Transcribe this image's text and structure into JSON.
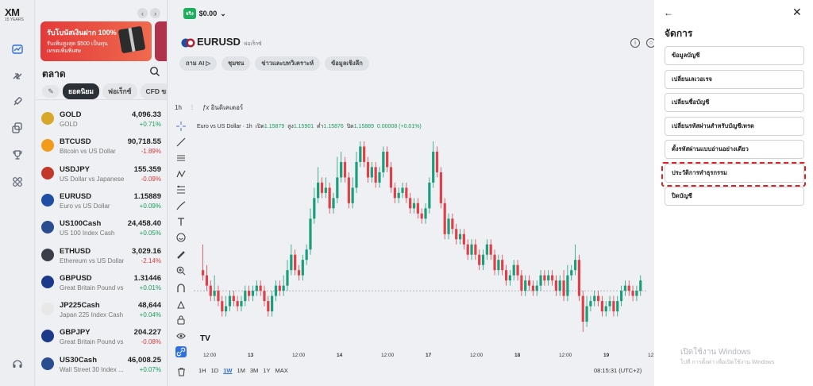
{
  "logo": {
    "brand": "XM",
    "years": "15 YEARS"
  },
  "rail": {
    "icons": [
      "chart-icon",
      "transfer-icon",
      "rocket-icon",
      "copy-icon",
      "trophy-icon",
      "apps-icon",
      "support-icon"
    ]
  },
  "market": {
    "banner_title": "รับโบนัสเงินฝาก 100%",
    "banner_sub": "รับเพิ่มสูงสุด $500 เป็นทุนเทรดเพิ่มพิเศษ",
    "title": "ตลาด",
    "tabs": [
      "ยอดนิยม",
      "ฟอเร็กซ์",
      "CFD ขอ"
    ],
    "assets": [
      {
        "symbol": "GOLD",
        "desc": "GOLD",
        "price": "4,096.33",
        "change": "+0.71%",
        "dir": "up",
        "flag": "#d8a628"
      },
      {
        "symbol": "BTCUSD",
        "desc": "Bitcoin vs US Dollar",
        "price": "90,718.55",
        "change": "-1.89%",
        "dir": "down",
        "flag": "#f29a1b"
      },
      {
        "symbol": "USDJPY",
        "desc": "US Dollar vs Japanese ...",
        "price": "155.359",
        "change": "-0.09%",
        "dir": "down",
        "flag": "#c0392b"
      },
      {
        "symbol": "EURUSD",
        "desc": "Euro vs US Dollar",
        "price": "1.15889",
        "change": "+0.09%",
        "dir": "up",
        "flag": "#1f4ea3"
      },
      {
        "symbol": "US100Cash",
        "desc": "US 100 Index Cash",
        "price": "24,458.40",
        "change": "+0.05%",
        "dir": "up",
        "flag": "#2a4d8f"
      },
      {
        "symbol": "ETHUSD",
        "desc": "Ethereum vs US Dollar",
        "price": "3,029.16",
        "change": "-2.14%",
        "dir": "down",
        "flag": "#3b3f4a"
      },
      {
        "symbol": "GBPUSD",
        "desc": "Great Britain Pound vs ...",
        "price": "1.31446",
        "change": "+0.01%",
        "dir": "up",
        "flag": "#1b3a8a"
      },
      {
        "symbol": "JP225Cash",
        "desc": "Japan 225 Index Cash",
        "price": "48,644",
        "change": "+0.04%",
        "dir": "up",
        "flag": "#e8e8e8"
      },
      {
        "symbol": "GBPJPY",
        "desc": "Great Britain Pound vs ...",
        "price": "204.227",
        "change": "-0.08%",
        "dir": "down",
        "flag": "#1b3a8a"
      },
      {
        "symbol": "US30Cash",
        "desc": "Wall Street 30 Index ...",
        "price": "46,008.25",
        "change": "+0.07%",
        "dir": "up",
        "flag": "#2a4d8f"
      }
    ]
  },
  "main": {
    "account_badge": "จริง",
    "balance": "$0.00",
    "pair": "EURUSD",
    "pair_type": "ฟอเร็กซ์",
    "chips": [
      "ถาม AI ▷",
      "ชุมชน",
      "ข่าวและบทวิเคราะห์",
      "ข้อมูลเชิงลึก"
    ],
    "interval": "1h",
    "indicators_label": "อินดิเคเตอร์",
    "ohlc": {
      "title": "Euro vs US Dollar · 1h",
      "open_label": "เปิด",
      "open": "1.15879",
      "high_label": "สูง",
      "high": "1.15901",
      "low_label": "ต่ำ",
      "low": "1.15876",
      "close_label": "ปิด",
      "close": "1.15889",
      "change": "0.00008 (+0.01%)"
    },
    "timeframes": [
      "1H",
      "1D",
      "1W",
      "1M",
      "3M",
      "1Y",
      "MAX"
    ],
    "selected_timeframe": "1W",
    "clock": "08:15:31 (UTC+2)",
    "tv_logo": "TV",
    "x_labels": [
      {
        "t": "12:00",
        "b": false
      },
      {
        "t": "13",
        "b": true
      },
      {
        "t": "12:00",
        "b": false
      },
      {
        "t": "14",
        "b": true
      },
      {
        "t": "12:00",
        "b": false
      },
      {
        "t": "17",
        "b": true
      },
      {
        "t": "12:00",
        "b": false
      },
      {
        "t": "18",
        "b": true
      },
      {
        "t": "12:00",
        "b": false
      },
      {
        "t": "19",
        "b": true
      },
      {
        "t": "12:00",
        "b": false
      }
    ]
  },
  "manage": {
    "title": "จัดการ",
    "items": [
      "ข้อมูลบัญชี",
      "เปลี่ยนเลเวอเรจ",
      "เปลี่ยนชื่อบัญชี",
      "เปลี่ยนรหัสผ่านสำหรับบัญชีเทรด",
      "ตั้งรหัสผ่านแบบอ่านอย่างเดียว",
      "ประวัติการทำธุรกรรม",
      "ปิดบัญชี"
    ],
    "highlighted_item": "ประวัติการทำธุรกรรม",
    "watermark_title": "เปิดใช้งาน Windows",
    "watermark_sub": "ไปที่ การตั้งค่า เพื่อเปิดใช้งาน Windows"
  },
  "colors": {
    "bull": "#1a9e7c",
    "bear": "#e0404a",
    "accent": "#2f6fe0",
    "highlight": "#e02020"
  },
  "chart_data": {
    "type": "candlestick",
    "symbol": "EURUSD",
    "interval": "1h",
    "candles": [
      [
        50,
        52,
        40,
        54,
        "d"
      ],
      [
        52,
        56,
        48,
        58,
        "d"
      ],
      [
        56,
        60,
        54,
        62,
        "d"
      ],
      [
        60,
        58,
        52,
        62,
        "u"
      ],
      [
        58,
        62,
        56,
        64,
        "d"
      ],
      [
        62,
        66,
        60,
        68,
        "d"
      ],
      [
        66,
        64,
        60,
        68,
        "u"
      ],
      [
        64,
        60,
        58,
        66,
        "u"
      ],
      [
        60,
        62,
        58,
        64,
        "d"
      ],
      [
        62,
        64,
        60,
        66,
        "d"
      ],
      [
        64,
        62,
        60,
        66,
        "u"
      ],
      [
        62,
        58,
        56,
        64,
        "u"
      ],
      [
        58,
        60,
        56,
        62,
        "d"
      ],
      [
        60,
        58,
        56,
        62,
        "u"
      ],
      [
        58,
        56,
        54,
        60,
        "u"
      ],
      [
        56,
        58,
        54,
        60,
        "d"
      ],
      [
        58,
        62,
        56,
        64,
        "d"
      ],
      [
        62,
        66,
        60,
        68,
        "d"
      ],
      [
        66,
        60,
        58,
        68,
        "u"
      ],
      [
        60,
        56,
        54,
        62,
        "u"
      ],
      [
        56,
        58,
        54,
        60,
        "d"
      ],
      [
        58,
        56,
        52,
        60,
        "u"
      ],
      [
        56,
        50,
        46,
        58,
        "u"
      ],
      [
        50,
        44,
        40,
        52,
        "u"
      ],
      [
        44,
        50,
        42,
        52,
        "d"
      ],
      [
        50,
        52,
        48,
        54,
        "d"
      ],
      [
        52,
        46,
        44,
        54,
        "u"
      ],
      [
        46,
        42,
        40,
        48,
        "u"
      ],
      [
        42,
        30,
        26,
        44,
        "u"
      ],
      [
        30,
        22,
        18,
        32,
        "u"
      ],
      [
        22,
        16,
        10,
        24,
        "u"
      ],
      [
        16,
        20,
        14,
        22,
        "d"
      ],
      [
        20,
        18,
        14,
        22,
        "u"
      ],
      [
        18,
        26,
        16,
        28,
        "d"
      ],
      [
        26,
        22,
        20,
        28,
        "u"
      ],
      [
        22,
        14,
        6,
        24,
        "u"
      ],
      [
        14,
        8,
        4,
        16,
        "u"
      ],
      [
        8,
        14,
        6,
        16,
        "d"
      ],
      [
        14,
        24,
        12,
        26,
        "d"
      ],
      [
        24,
        18,
        14,
        26,
        "u"
      ],
      [
        18,
        8,
        4,
        20,
        "u"
      ],
      [
        8,
        2,
        0,
        10,
        "u"
      ],
      [
        2,
        8,
        0,
        10,
        "d"
      ],
      [
        8,
        14,
        6,
        16,
        "d"
      ],
      [
        14,
        10,
        8,
        16,
        "u"
      ],
      [
        10,
        16,
        8,
        18,
        "d"
      ],
      [
        16,
        12,
        10,
        18,
        "u"
      ],
      [
        12,
        4,
        2,
        14,
        "u"
      ],
      [
        4,
        10,
        2,
        12,
        "d"
      ],
      [
        10,
        18,
        8,
        20,
        "d"
      ],
      [
        18,
        22,
        16,
        24,
        "d"
      ],
      [
        22,
        20,
        18,
        24,
        "u"
      ],
      [
        20,
        18,
        16,
        22,
        "u"
      ],
      [
        18,
        22,
        16,
        24,
        "d"
      ],
      [
        22,
        26,
        20,
        28,
        "d"
      ],
      [
        26,
        24,
        22,
        28,
        "u"
      ],
      [
        24,
        28,
        22,
        30,
        "d"
      ],
      [
        28,
        30,
        26,
        32,
        "d"
      ],
      [
        30,
        26,
        24,
        32,
        "u"
      ],
      [
        26,
        16,
        14,
        28,
        "u"
      ],
      [
        16,
        4,
        0,
        18,
        "u"
      ],
      [
        4,
        12,
        2,
        14,
        "d"
      ],
      [
        12,
        24,
        10,
        26,
        "d"
      ],
      [
        24,
        36,
        22,
        38,
        "d"
      ],
      [
        36,
        30,
        28,
        38,
        "u"
      ],
      [
        30,
        34,
        28,
        36,
        "d"
      ],
      [
        34,
        38,
        32,
        40,
        "d"
      ],
      [
        38,
        36,
        34,
        40,
        "u"
      ],
      [
        36,
        40,
        34,
        42,
        "d"
      ],
      [
        40,
        44,
        38,
        46,
        "d"
      ],
      [
        44,
        40,
        38,
        46,
        "u"
      ],
      [
        40,
        44,
        38,
        46,
        "d"
      ],
      [
        44,
        48,
        42,
        50,
        "d"
      ],
      [
        48,
        44,
        42,
        50,
        "u"
      ],
      [
        44,
        40,
        38,
        46,
        "u"
      ],
      [
        40,
        44,
        38,
        46,
        "d"
      ],
      [
        44,
        50,
        42,
        52,
        "d"
      ],
      [
        50,
        46,
        44,
        52,
        "u"
      ],
      [
        46,
        50,
        44,
        52,
        "d"
      ],
      [
        50,
        54,
        48,
        56,
        "d"
      ],
      [
        54,
        52,
        50,
        56,
        "u"
      ],
      [
        52,
        48,
        46,
        54,
        "u"
      ],
      [
        48,
        52,
        46,
        54,
        "d"
      ],
      [
        52,
        58,
        50,
        60,
        "d"
      ],
      [
        58,
        54,
        52,
        60,
        "u"
      ],
      [
        54,
        56,
        52,
        58,
        "d"
      ],
      [
        56,
        58,
        54,
        60,
        "d"
      ],
      [
        58,
        56,
        54,
        60,
        "u"
      ],
      [
        56,
        52,
        50,
        58,
        "u"
      ],
      [
        52,
        54,
        50,
        56,
        "d"
      ],
      [
        54,
        52,
        50,
        56,
        "u"
      ],
      [
        52,
        54,
        50,
        56,
        "d"
      ],
      [
        54,
        58,
        52,
        60,
        "d"
      ],
      [
        58,
        54,
        52,
        60,
        "u"
      ],
      [
        54,
        60,
        50,
        62,
        "d"
      ],
      [
        60,
        52,
        48,
        62,
        "u"
      ],
      [
        52,
        50,
        48,
        54,
        "u"
      ],
      [
        50,
        46,
        40,
        52,
        "u"
      ],
      [
        46,
        60,
        44,
        62,
        "d"
      ],
      [
        60,
        70,
        58,
        74,
        "d"
      ],
      [
        70,
        64,
        60,
        72,
        "u"
      ],
      [
        64,
        62,
        60,
        66,
        "u"
      ],
      [
        62,
        60,
        58,
        64,
        "u"
      ],
      [
        60,
        62,
        58,
        64,
        "d"
      ],
      [
        62,
        66,
        60,
        68,
        "d"
      ],
      [
        66,
        64,
        62,
        68,
        "u"
      ],
      [
        64,
        62,
        60,
        66,
        "u"
      ],
      [
        62,
        66,
        60,
        68,
        "d"
      ],
      [
        66,
        62,
        60,
        68,
        "u"
      ],
      [
        62,
        58,
        56,
        64,
        "u"
      ],
      [
        58,
        56,
        54,
        60,
        "u"
      ],
      [
        56,
        58,
        54,
        60,
        "d"
      ],
      [
        58,
        60,
        56,
        62,
        "d"
      ],
      [
        60,
        58,
        56,
        62,
        "u"
      ],
      [
        58,
        54,
        52,
        60,
        "u"
      ]
    ],
    "reference_line": 58
  }
}
